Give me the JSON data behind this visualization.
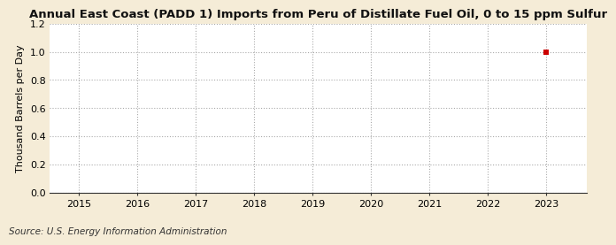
{
  "title": "Annual East Coast (PADD 1) Imports from Peru of Distillate Fuel Oil, 0 to 15 ppm Sulfur",
  "ylabel": "Thousand Barrels per Day",
  "source_text": "Source: U.S. Energy Information Administration",
  "background_color": "#f5ecd7",
  "plot_bg_color": "#ffffff",
  "data_x": [
    2023
  ],
  "data_y": [
    1.0
  ],
  "marker_color": "#cc0000",
  "marker_size": 4,
  "marker_style": "s",
  "xlim": [
    2014.5,
    2023.7
  ],
  "ylim": [
    0.0,
    1.2
  ],
  "xticks": [
    2015,
    2016,
    2017,
    2018,
    2019,
    2020,
    2021,
    2022,
    2023
  ],
  "yticks": [
    0.0,
    0.2,
    0.4,
    0.6,
    0.8,
    1.0,
    1.2
  ],
  "grid_color": "#aaaaaa",
  "grid_style": ":",
  "title_fontsize": 9.5,
  "axis_label_fontsize": 8,
  "tick_fontsize": 8,
  "source_fontsize": 7.5
}
